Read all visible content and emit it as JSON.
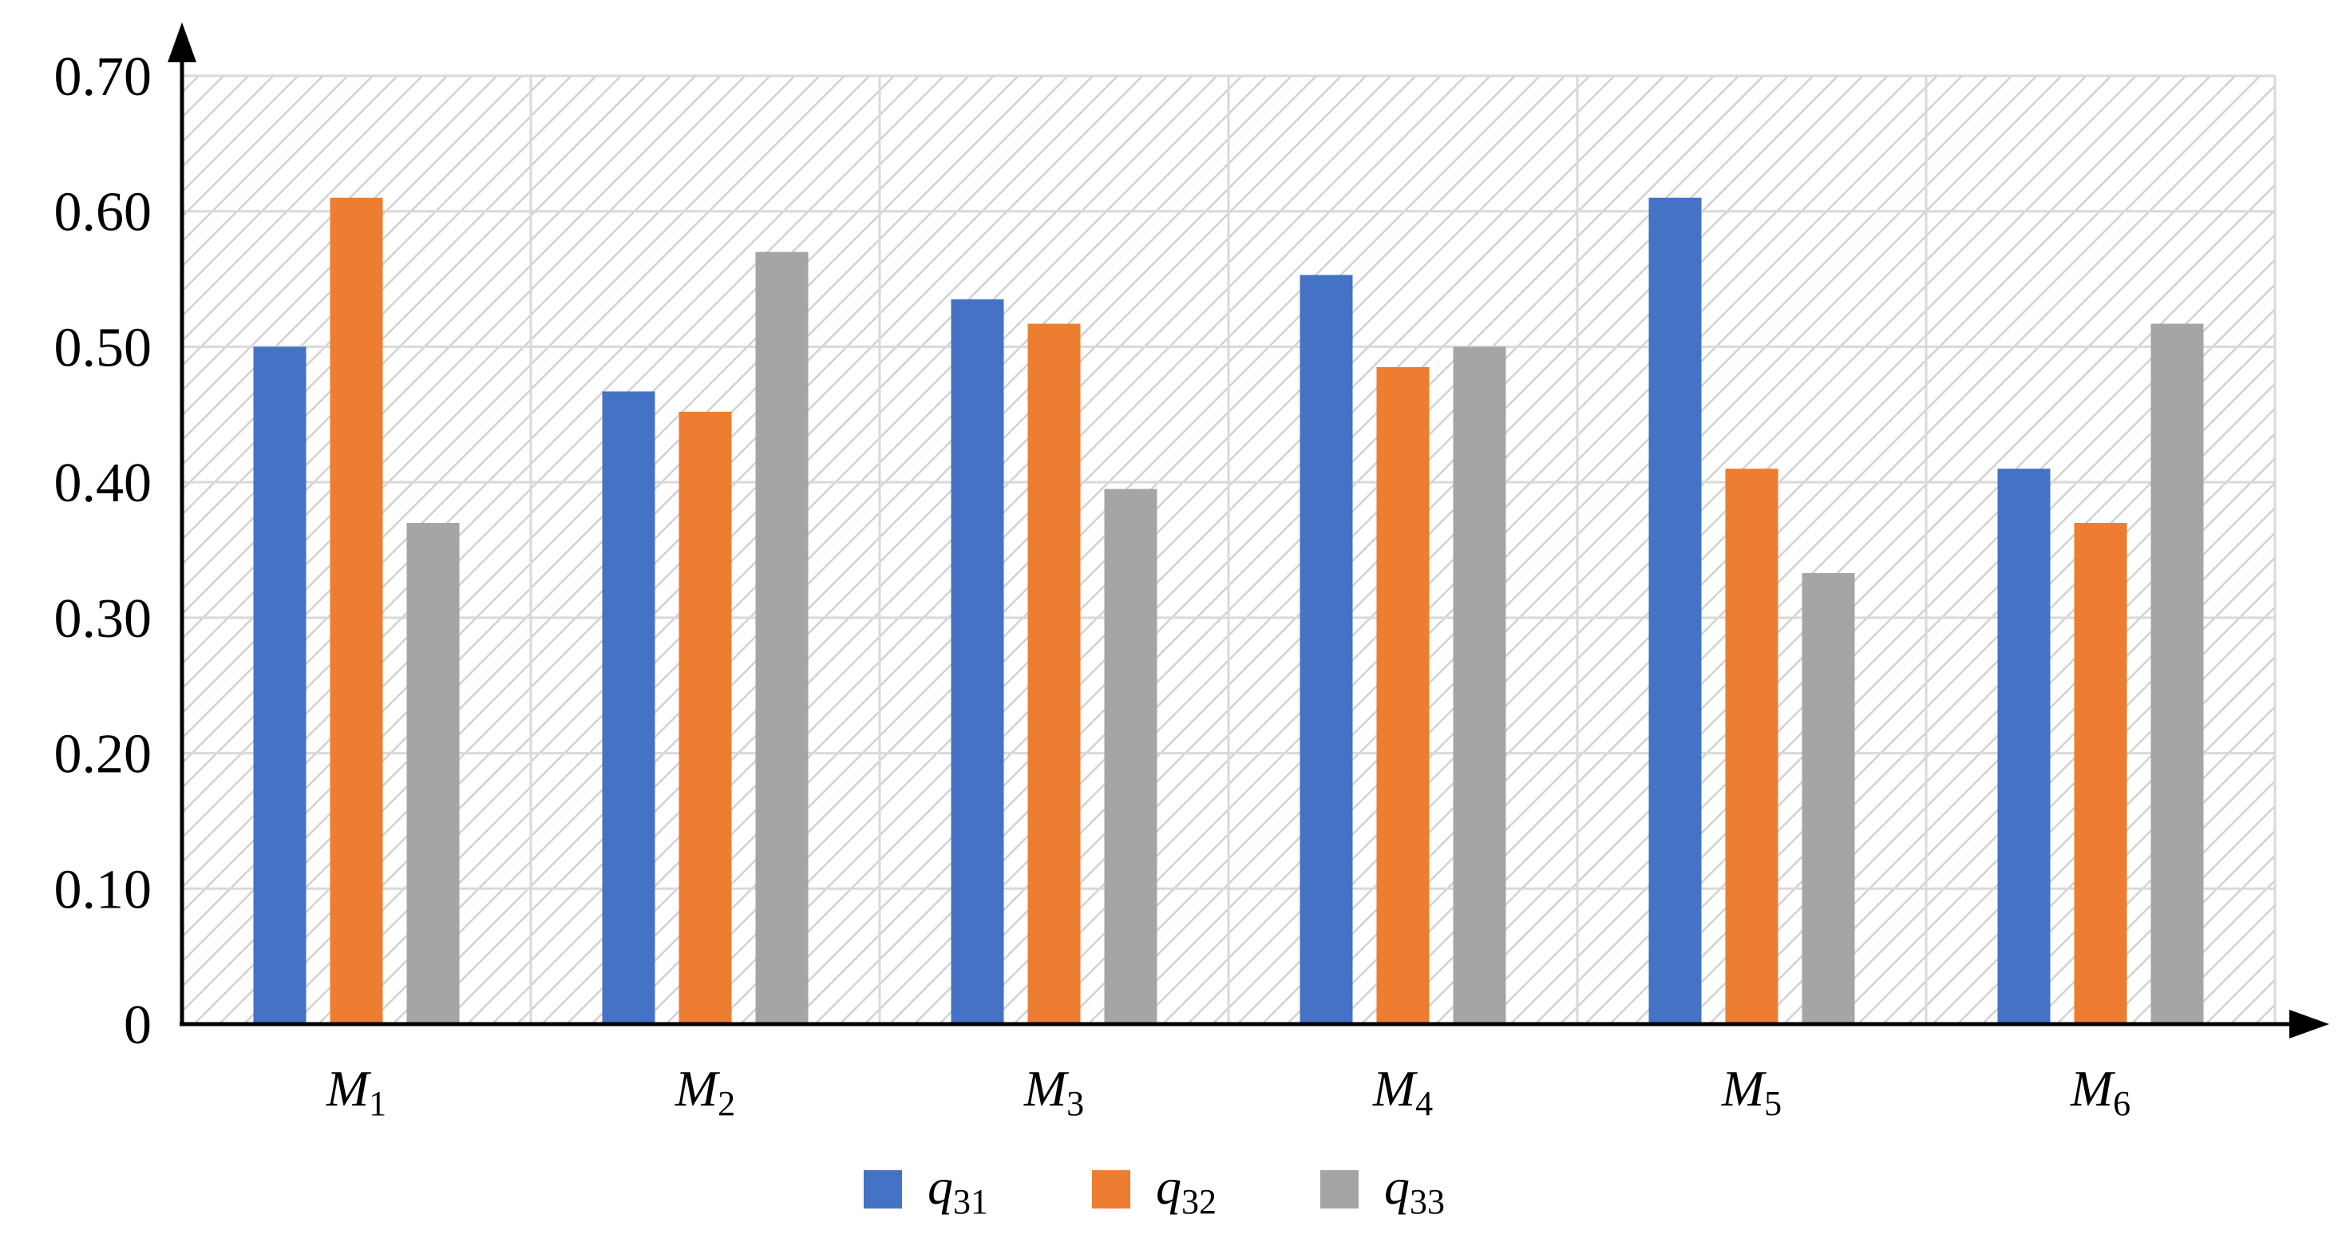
{
  "chart_data": {
    "type": "bar",
    "categories": [
      {
        "base": "M",
        "sub": "1"
      },
      {
        "base": "M",
        "sub": "2"
      },
      {
        "base": "M",
        "sub": "3"
      },
      {
        "base": "M",
        "sub": "4"
      },
      {
        "base": "M",
        "sub": "5"
      },
      {
        "base": "M",
        "sub": "6"
      }
    ],
    "series": [
      {
        "name": {
          "base": "q",
          "sub": "31"
        },
        "color": "#4472C4",
        "values": [
          0.5,
          0.467,
          0.535,
          0.553,
          0.61,
          0.41
        ]
      },
      {
        "name": {
          "base": "q",
          "sub": "32"
        },
        "color": "#ED7D31",
        "values": [
          0.61,
          0.452,
          0.517,
          0.485,
          0.41,
          0.37
        ]
      },
      {
        "name": {
          "base": "q",
          "sub": "33"
        },
        "color": "#A5A5A5",
        "values": [
          0.37,
          0.57,
          0.395,
          0.5,
          0.333,
          0.517
        ]
      }
    ],
    "yticks": [
      "0",
      "0.10",
      "0.20",
      "0.30",
      "0.40",
      "0.50",
      "0.60",
      "0.70"
    ],
    "ylim": [
      0,
      0.7
    ],
    "grid": true,
    "background_hatch": true,
    "legend_position": "bottom-center",
    "title": "",
    "xlabel": "",
    "ylabel": ""
  }
}
